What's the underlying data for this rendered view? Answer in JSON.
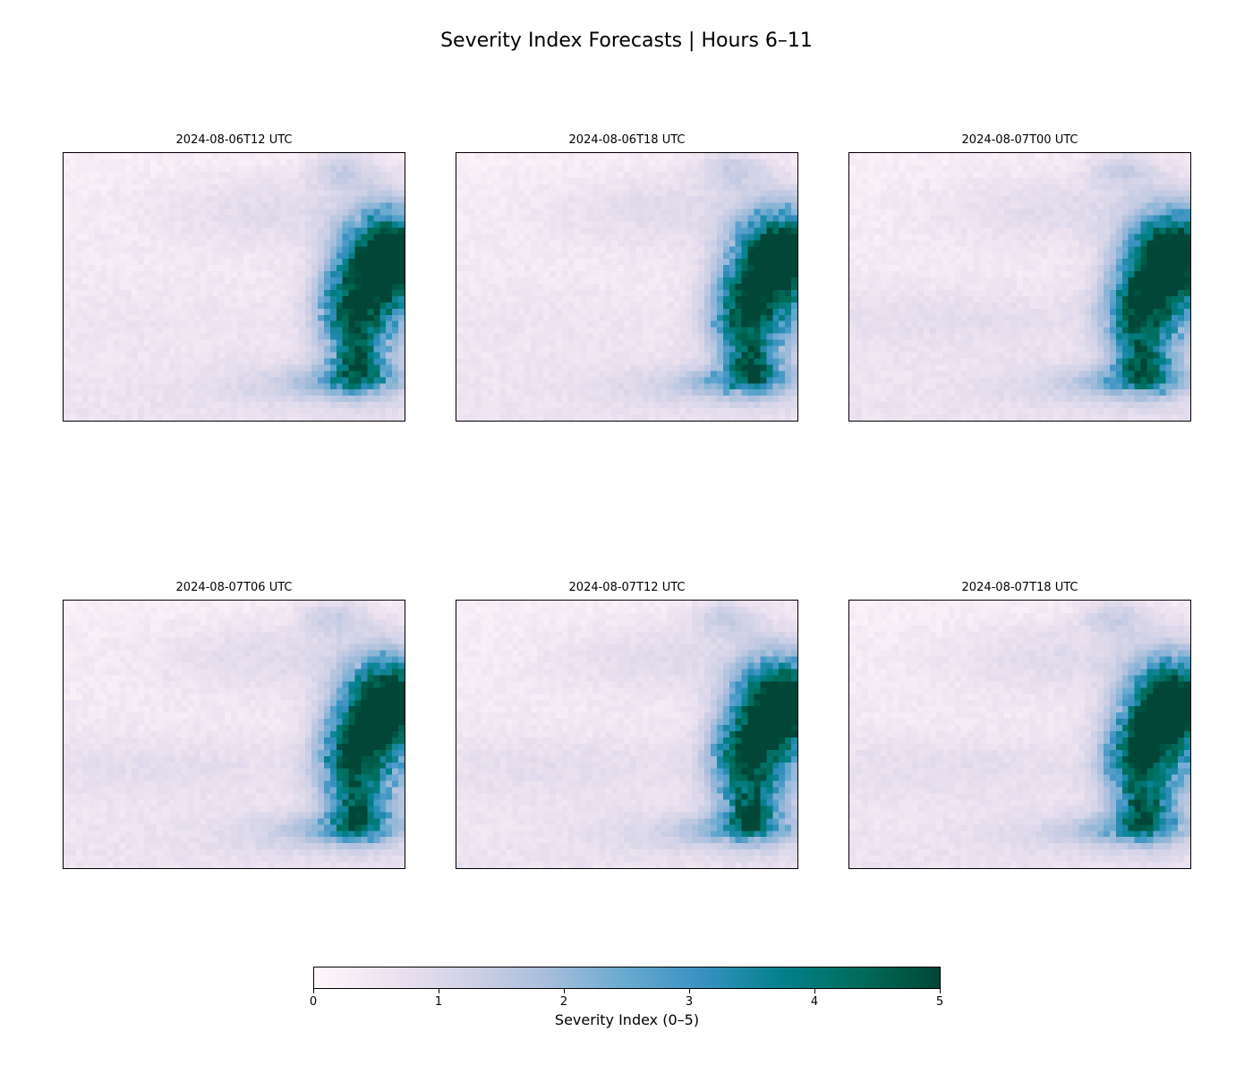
{
  "chart_data": {
    "type": "heatmap",
    "title": "Severity Index Forecasts | Hours 6–11",
    "panels": [
      {
        "title": "2024-08-06T12 UTC",
        "hour": 6
      },
      {
        "title": "2024-08-06T18 UTC",
        "hour": 7
      },
      {
        "title": "2024-08-07T00 UTC",
        "hour": 8
      },
      {
        "title": "2024-08-07T06 UTC",
        "hour": 9
      },
      {
        "title": "2024-08-07T12 UTC",
        "hour": 10
      },
      {
        "title": "2024-08-07T18 UTC",
        "hour": 11
      }
    ],
    "colorbar": {
      "label": "Severity Index (0–5)",
      "range": [
        0,
        5
      ],
      "ticks": [
        "0",
        "1",
        "2",
        "3",
        "4",
        "5"
      ],
      "colormap": "PuBuGn",
      "colormap_stops": [
        "#fff7fb",
        "#ece2f0",
        "#d0d1e6",
        "#a6bddb",
        "#67a9cf",
        "#3690c0",
        "#02818a",
        "#016c59",
        "#014636"
      ]
    },
    "grid": false
  }
}
